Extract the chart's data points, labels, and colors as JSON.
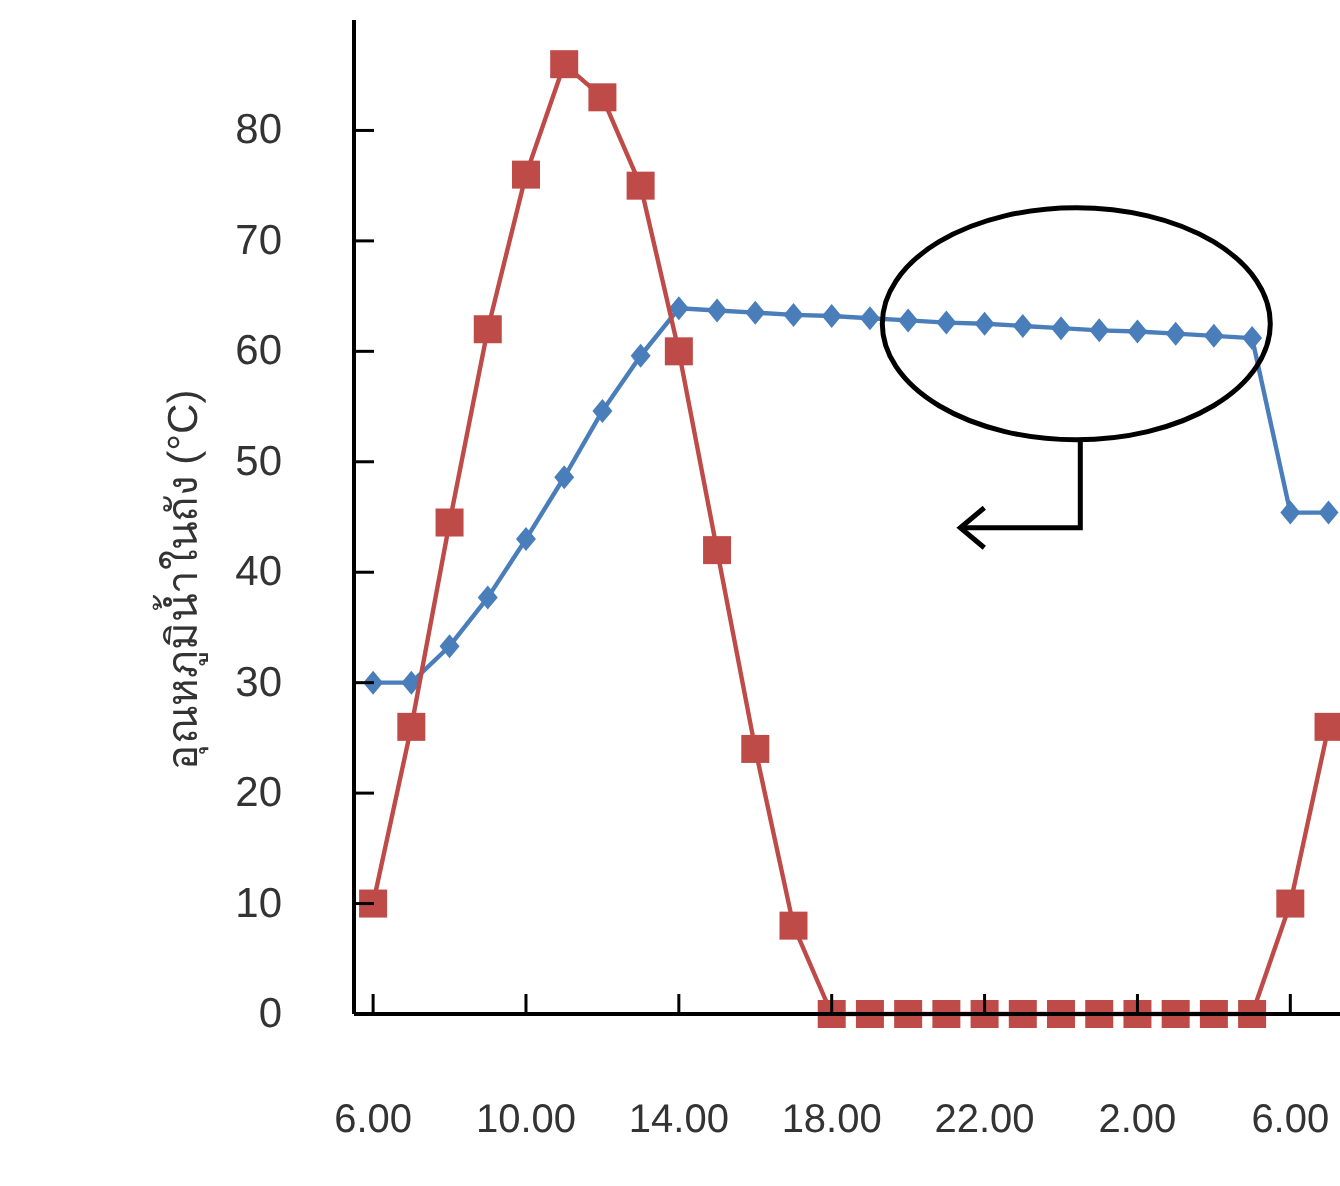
{
  "chart_data": {
    "type": "line",
    "ylabel": "อุณหภูมิน้ำในถัง (°C)",
    "categories": [
      "6.00",
      null,
      null,
      null,
      "10.00",
      null,
      null,
      null,
      "14.00",
      null,
      null,
      null,
      "18.00",
      null,
      null,
      null,
      "22.00",
      null,
      null,
      null,
      "2.00",
      null,
      null,
      null,
      "6.00",
      null
    ],
    "ylim": [
      0,
      90
    ],
    "yticks": [
      0,
      10,
      20,
      30,
      40,
      50,
      60,
      70,
      80
    ],
    "grid": false,
    "line_style": "solid",
    "series": [
      {
        "color": "#4a7ebb",
        "marker": "diamond",
        "values": [
          30,
          30,
          33.3,
          37.7,
          43,
          48.6,
          54.6,
          59.6,
          63.9,
          63.7,
          63.5,
          63.3,
          63.2,
          63.0,
          62.8,
          62.6,
          62.5,
          62.3,
          62.1,
          61.9,
          61.8,
          61.6,
          61.4,
          61.2,
          45.4,
          45.4
        ]
      },
      {
        "color": "#be4b48",
        "marker": "square",
        "values": [
          10,
          26,
          44.5,
          62,
          76,
          86,
          83,
          75,
          60,
          42,
          24,
          8,
          0,
          0,
          0,
          0,
          0,
          0,
          0,
          0,
          0,
          0,
          0,
          0,
          10,
          26
        ]
      }
    ]
  }
}
